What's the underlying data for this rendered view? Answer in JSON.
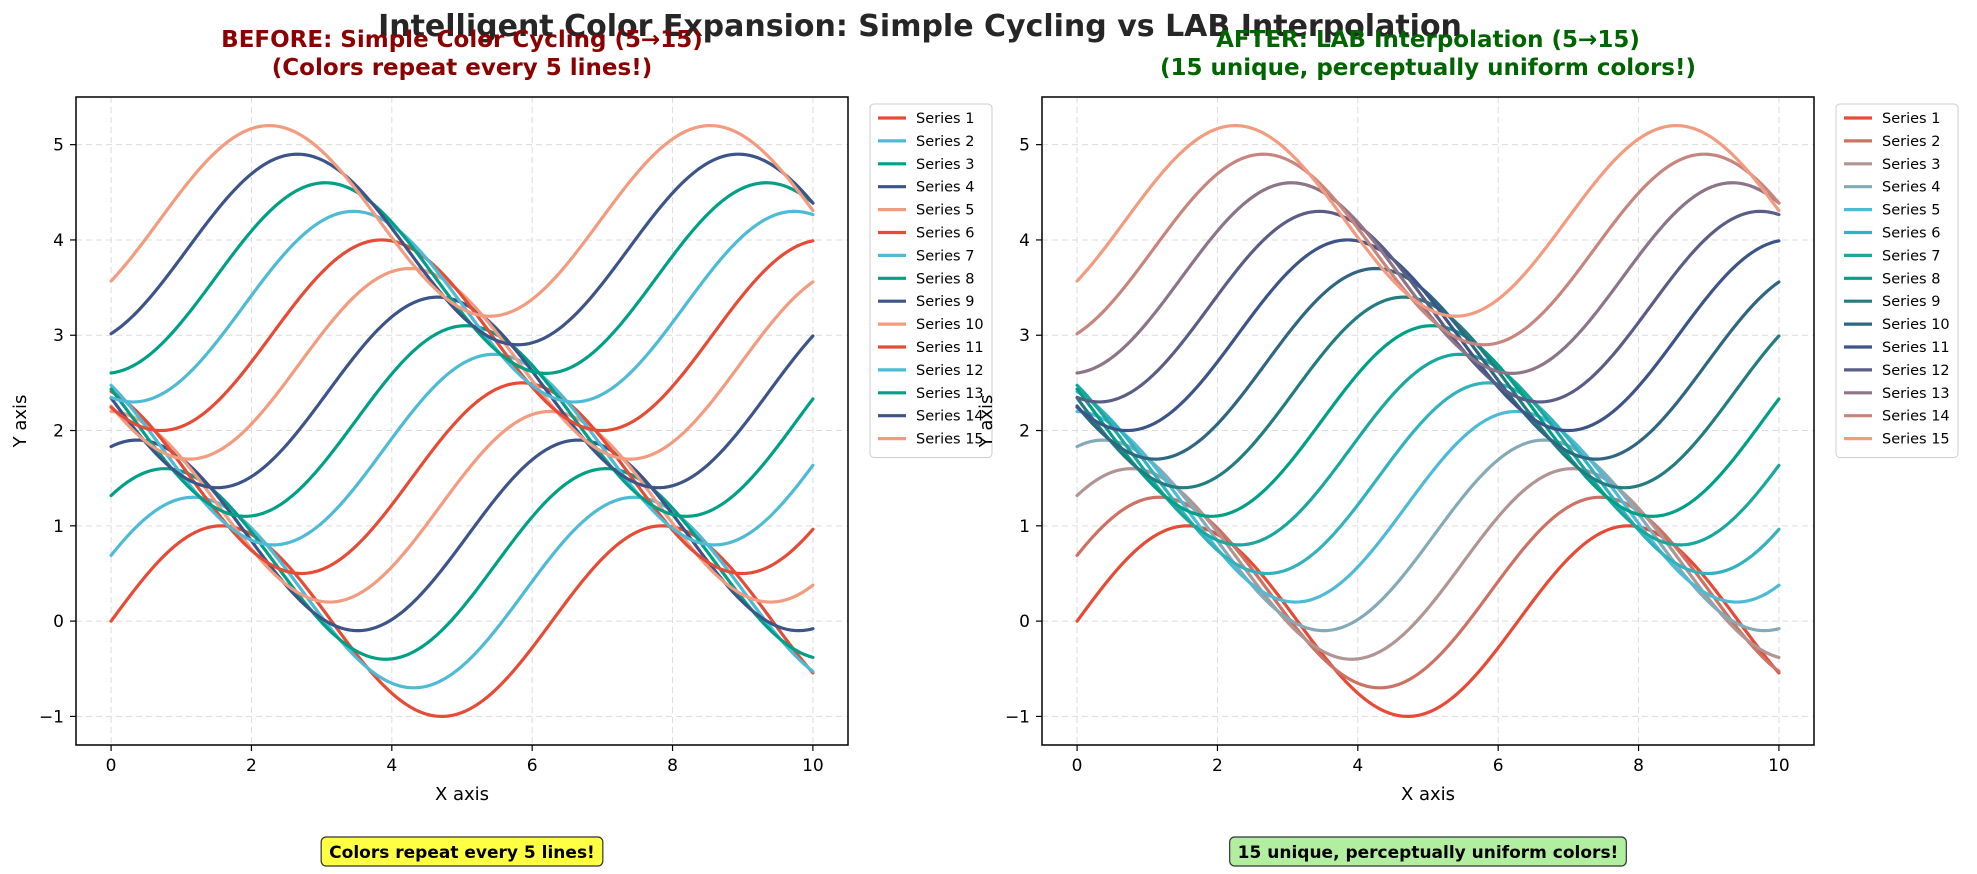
{
  "figure_title": "Intelligent Color Expansion: Simple Cycling vs LAB Interpolation",
  "colors": {
    "before_title": "#8b0000",
    "after_title": "#006400",
    "before_note_bg": "#ffff44",
    "after_note_bg": "#b2eea0",
    "grid": "#dcdcdc"
  },
  "chart_data": [
    {
      "type": "line",
      "title_lines": [
        "BEFORE: Simple Color Cycling (5→15)",
        "(Colors repeat every 5 lines!)"
      ],
      "xlabel": "X axis",
      "ylabel": "Y axis",
      "xlim": [
        -0.5,
        10.5
      ],
      "ylim": [
        -1.3,
        5.5
      ],
      "xticks": [
        0,
        2,
        4,
        6,
        8,
        10
      ],
      "yticks": [
        -1,
        0,
        1,
        2,
        3,
        4,
        5
      ],
      "grid": true,
      "legend_position": "outside-right",
      "curve": "y = sin(x + 0.4*i) + 0.3*i",
      "x_range": [
        0,
        10
      ],
      "note": "Colors repeat every 5 lines!",
      "series": [
        {
          "name": "Series 1",
          "offset_index": 0,
          "color": "#e64b35"
        },
        {
          "name": "Series 2",
          "offset_index": 1,
          "color": "#4dbbd5"
        },
        {
          "name": "Series 3",
          "offset_index": 2,
          "color": "#00a087"
        },
        {
          "name": "Series 4",
          "offset_index": 3,
          "color": "#3c5488"
        },
        {
          "name": "Series 5",
          "offset_index": 4,
          "color": "#f39b7f"
        },
        {
          "name": "Series 6",
          "offset_index": 5,
          "color": "#e64b35"
        },
        {
          "name": "Series 7",
          "offset_index": 6,
          "color": "#4dbbd5"
        },
        {
          "name": "Series 8",
          "offset_index": 7,
          "color": "#00a087"
        },
        {
          "name": "Series 9",
          "offset_index": 8,
          "color": "#3c5488"
        },
        {
          "name": "Series 10",
          "offset_index": 9,
          "color": "#f39b7f"
        },
        {
          "name": "Series 11",
          "offset_index": 10,
          "color": "#e64b35"
        },
        {
          "name": "Series 12",
          "offset_index": 11,
          "color": "#4dbbd5"
        },
        {
          "name": "Series 13",
          "offset_index": 12,
          "color": "#00a087"
        },
        {
          "name": "Series 14",
          "offset_index": 13,
          "color": "#3c5488"
        },
        {
          "name": "Series 15",
          "offset_index": 14,
          "color": "#f39b7f"
        }
      ]
    },
    {
      "type": "line",
      "title_lines": [
        "AFTER: LAB Interpolation (5→15)",
        "(15 unique, perceptually uniform colors!)"
      ],
      "xlabel": "X axis",
      "ylabel": "Y axis",
      "xlim": [
        -0.5,
        10.5
      ],
      "ylim": [
        -1.3,
        5.5
      ],
      "xticks": [
        0,
        2,
        4,
        6,
        8,
        10
      ],
      "yticks": [
        -1,
        0,
        1,
        2,
        3,
        4,
        5
      ],
      "grid": true,
      "legend_position": "outside-right",
      "curve": "y = sin(x + 0.4*i) + 0.3*i",
      "x_range": [
        0,
        10
      ],
      "note": "15 unique, perceptually uniform colors!",
      "series": [
        {
          "name": "Series 1",
          "offset_index": 0,
          "color": "#e64b35"
        },
        {
          "name": "Series 2",
          "offset_index": 1,
          "color": "#cd7163"
        },
        {
          "name": "Series 3",
          "offset_index": 2,
          "color": "#b19592"
        },
        {
          "name": "Series 4",
          "offset_index": 3,
          "color": "#85aab7"
        },
        {
          "name": "Series 5",
          "offset_index": 4,
          "color": "#4dbbd5"
        },
        {
          "name": "Series 6",
          "offset_index": 5,
          "color": "#32b2bc"
        },
        {
          "name": "Series 7",
          "offset_index": 6,
          "color": "#1aa79f"
        },
        {
          "name": "Series 8",
          "offset_index": 7,
          "color": "#00a087"
        },
        {
          "name": "Series 9",
          "offset_index": 8,
          "color": "#237d80"
        },
        {
          "name": "Series 10",
          "offset_index": 9,
          "color": "#2f6682"
        },
        {
          "name": "Series 11",
          "offset_index": 10,
          "color": "#3c5488"
        },
        {
          "name": "Series 12",
          "offset_index": 11,
          "color": "#5a5e86"
        },
        {
          "name": "Series 13",
          "offset_index": 12,
          "color": "#8d7488"
        },
        {
          "name": "Series 14",
          "offset_index": 13,
          "color": "#c7857d"
        },
        {
          "name": "Series 15",
          "offset_index": 14,
          "color": "#f39b7f"
        }
      ]
    }
  ]
}
